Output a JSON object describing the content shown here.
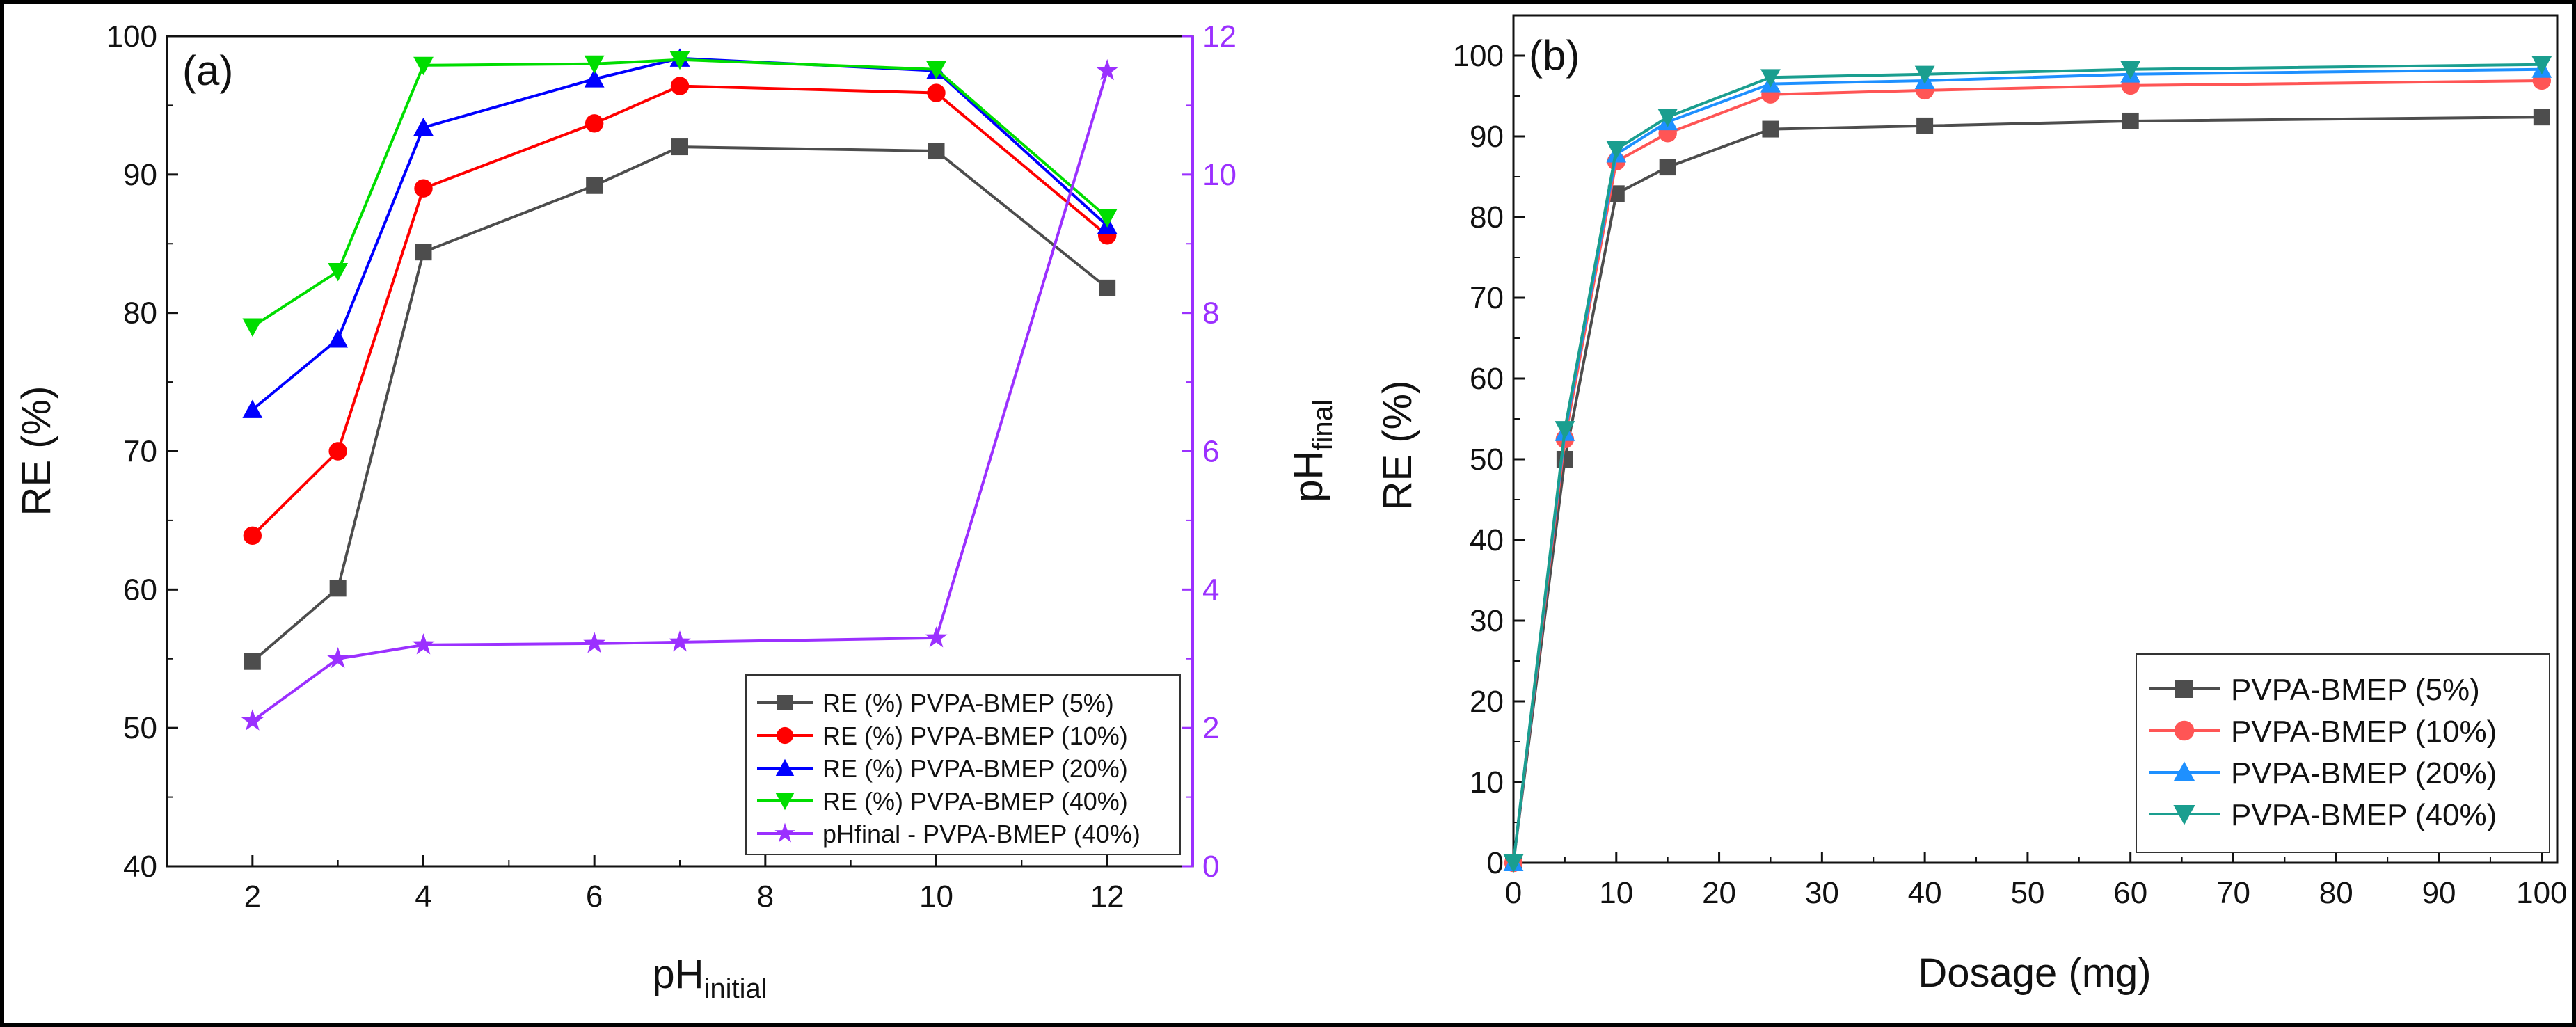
{
  "chart_data": [
    {
      "panel": "(a)",
      "type": "line",
      "xlabel": "pH",
      "xlabel_sub": "initial",
      "ylabel": "RE (%)",
      "ylabel_right": "pH",
      "ylabel_right_sub": "final",
      "xlim": [
        1,
        13
      ],
      "ylim": [
        40,
        100
      ],
      "ylim_right": [
        0,
        12
      ],
      "xticks": [
        2,
        4,
        6,
        8,
        10,
        12
      ],
      "yticks": [
        40,
        50,
        60,
        70,
        80,
        90,
        100
      ],
      "yticks_right": [
        0,
        2,
        4,
        6,
        8,
        10,
        12
      ],
      "right_axis_color": "#9b30ff",
      "legend_position": "bottom-right",
      "series": [
        {
          "name": "RE (%) PVPA-BMEP (5%)",
          "axis": "left",
          "color": "#4d4d4d",
          "marker": "square",
          "x": [
            2,
            3,
            4,
            6,
            7,
            10,
            12
          ],
          "values": [
            54.8,
            60.1,
            84.4,
            89.2,
            92.0,
            91.7,
            81.8
          ]
        },
        {
          "name": "RE (%) PVPA-BMEP (10%)",
          "axis": "left",
          "color": "#ff0000",
          "marker": "circle",
          "x": [
            2,
            3,
            4,
            6,
            7,
            10,
            12
          ],
          "values": [
            63.9,
            70.0,
            89.0,
            93.7,
            96.4,
            95.9,
            85.6
          ]
        },
        {
          "name": "RE (%) PVPA-BMEP (20%)",
          "axis": "left",
          "color": "#0000ff",
          "marker": "triangle-up",
          "x": [
            2,
            3,
            4,
            6,
            7,
            10,
            12
          ],
          "values": [
            73.0,
            78.1,
            93.4,
            96.9,
            98.4,
            97.5,
            86.3
          ]
        },
        {
          "name": "RE (%) PVPA-BMEP (40%)",
          "axis": "left",
          "color": "#00dd00",
          "marker": "triangle-down",
          "x": [
            2,
            3,
            4,
            6,
            7,
            10,
            12
          ],
          "values": [
            79.0,
            83.0,
            97.9,
            98.0,
            98.3,
            97.6,
            86.9
          ]
        },
        {
          "name": "pHfinal - PVPA-BMEP (40%)",
          "axis": "right",
          "color": "#9b30ff",
          "marker": "star",
          "x": [
            2,
            3,
            4,
            6,
            7,
            10,
            12
          ],
          "values": [
            2.1,
            3.0,
            3.2,
            3.22,
            3.24,
            3.3,
            11.5
          ]
        }
      ]
    },
    {
      "panel": "(b)",
      "type": "line",
      "xlabel": "Dosage (mg)",
      "ylabel": "RE (%)",
      "xlim": [
        0,
        101.5
      ],
      "ylim": [
        0,
        105
      ],
      "xticks": [
        0,
        10,
        20,
        30,
        40,
        50,
        60,
        70,
        80,
        90,
        100
      ],
      "yticks": [
        0,
        10,
        20,
        30,
        40,
        50,
        60,
        70,
        80,
        90,
        100
      ],
      "legend_position": "bottom-right",
      "series": [
        {
          "name": "PVPA-BMEP (5%)",
          "color": "#4d4d4d",
          "marker": "square",
          "x": [
            0,
            5,
            10,
            15,
            25,
            40,
            60,
            100
          ],
          "values": [
            0,
            50.0,
            82.9,
            86.2,
            90.9,
            91.3,
            91.9,
            92.4
          ]
        },
        {
          "name": "PVPA-BMEP (10%)",
          "color": "#ff5555",
          "marker": "circle",
          "x": [
            0,
            5,
            10,
            15,
            25,
            40,
            60,
            100
          ],
          "values": [
            0,
            52.5,
            86.9,
            90.4,
            95.2,
            95.7,
            96.3,
            96.9
          ]
        },
        {
          "name": "PVPA-BMEP (20%)",
          "color": "#1e90ff",
          "marker": "triangle-up",
          "x": [
            0,
            5,
            10,
            15,
            25,
            40,
            60,
            100
          ],
          "values": [
            0,
            53.3,
            87.8,
            91.8,
            96.5,
            96.9,
            97.7,
            98.3
          ]
        },
        {
          "name": "PVPA-BMEP (40%)",
          "color": "#1a9e8f",
          "marker": "triangle-down",
          "x": [
            0,
            5,
            10,
            15,
            25,
            40,
            60,
            100
          ],
          "values": [
            0,
            53.7,
            88.4,
            92.4,
            97.3,
            97.7,
            98.3,
            98.9
          ]
        }
      ]
    }
  ]
}
